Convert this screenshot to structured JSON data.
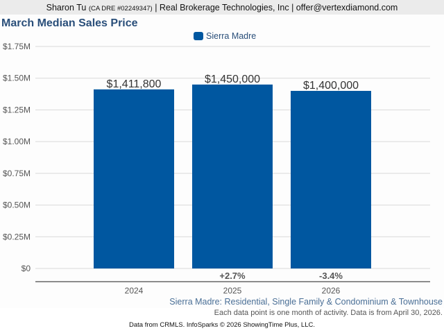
{
  "header": {
    "agent_name": "Sharon Tu",
    "license": "(CA DRE #02249347)",
    "rest": "| Real Brokerage Technologies, Inc | offer@vertexdiamond.com"
  },
  "chart_data": {
    "type": "bar",
    "title": "March Median Sales Price",
    "categories": [
      "2024",
      "2025",
      "2026"
    ],
    "series": [
      {
        "name": "Sierra Madre",
        "color": "#0057a0",
        "values": [
          1411800,
          1450000,
          1400000
        ],
        "value_labels": [
          "$1,411,800",
          "$1,450,000",
          "$1,400,000"
        ]
      }
    ],
    "change_labels": [
      "",
      "+2.7%",
      "-3.4%"
    ],
    "ylim": [
      0,
      1750000
    ],
    "yticks": [
      0,
      250000,
      500000,
      750000,
      1000000,
      1250000,
      1500000,
      1750000
    ],
    "ytick_labels": [
      "$0",
      "$0.25M",
      "$0.50M",
      "$0.75M",
      "$1.00M",
      "$1.25M",
      "$1.50M",
      "$1.75M"
    ],
    "xlabel": "",
    "ylabel": "",
    "grid": true,
    "legend": "top-center"
  },
  "footer": {
    "description": "Sierra Madre: Residential, Single Family & Condominium & Townhouse",
    "note": "Each data point is one month of activity. Data is from April 30, 2026.",
    "source": "Data from CRMLS. InfoSparks © 2026 ShowingTime Plus, LLC."
  }
}
